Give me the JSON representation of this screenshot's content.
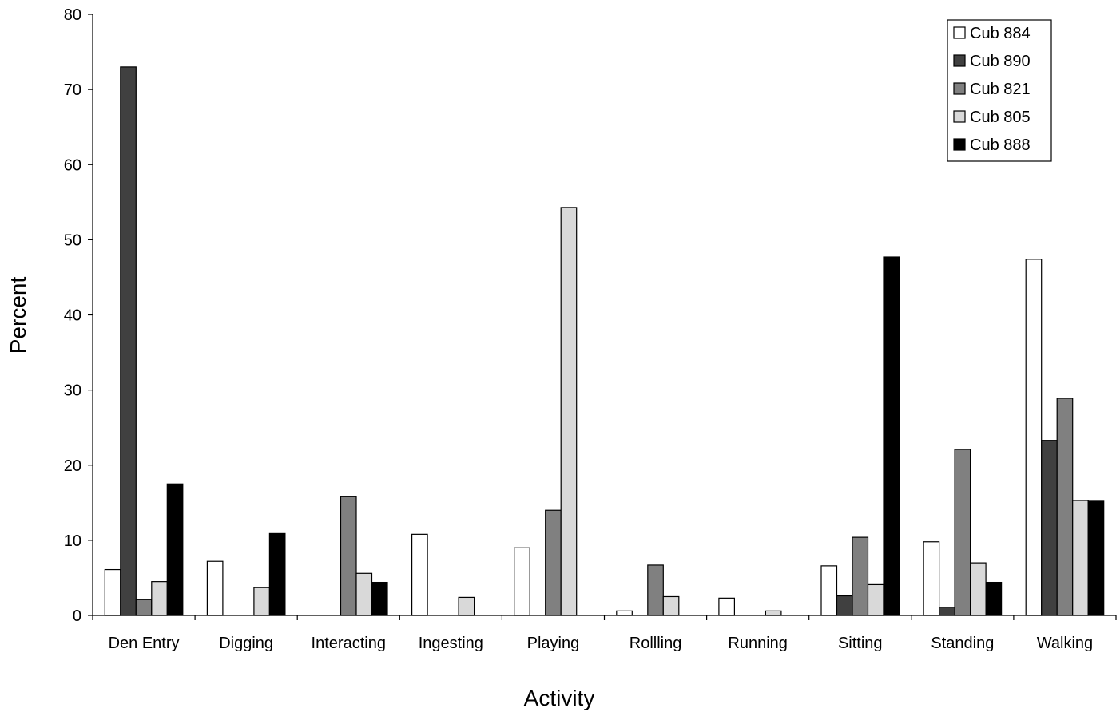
{
  "chart_data": {
    "type": "bar",
    "title": "",
    "xlabel": "Activity",
    "ylabel": "Percent",
    "ylim": [
      0,
      80
    ],
    "yticks": [
      0,
      10,
      20,
      30,
      40,
      50,
      60,
      70,
      80
    ],
    "grid": false,
    "legend_position": "top-right",
    "categories": [
      "Den Entry",
      "Digging",
      "Interacting",
      "Ingesting",
      "Playing",
      "Rollling",
      "Running",
      "Sitting",
      "Standing",
      "Walking"
    ],
    "series": [
      {
        "name": "Cub 884",
        "color": "#ffffff",
        "values": [
          6.1,
          7.2,
          0,
          10.8,
          9.0,
          0.6,
          2.3,
          6.6,
          9.8,
          47.4
        ]
      },
      {
        "name": "Cub 890",
        "color": "#404040",
        "values": [
          73.0,
          0,
          0,
          0,
          0,
          0,
          0,
          2.6,
          1.1,
          23.3
        ]
      },
      {
        "name": "Cub 821",
        "color": "#808080",
        "values": [
          2.1,
          0,
          15.8,
          0,
          14.0,
          6.7,
          0,
          10.4,
          22.1,
          28.9
        ]
      },
      {
        "name": "Cub 805",
        "color": "#d9d9d9",
        "values": [
          4.5,
          3.7,
          5.6,
          2.4,
          54.3,
          2.5,
          0.6,
          4.1,
          7.0,
          15.3
        ]
      },
      {
        "name": "Cub 888",
        "color": "#000000",
        "values": [
          17.5,
          10.9,
          4.4,
          0,
          0,
          0,
          0,
          47.7,
          4.4,
          15.2
        ]
      }
    ]
  }
}
